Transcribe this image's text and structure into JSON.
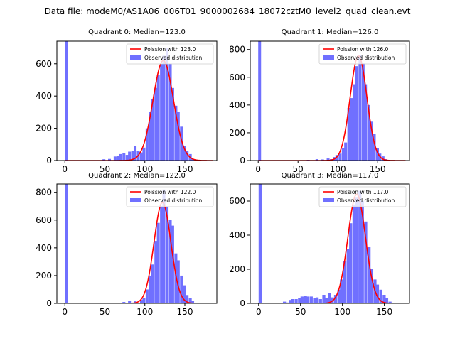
{
  "figure_title": "Data file: modeM0/AS1A06_006T01_9000002684_18072cztM0_level2_quad_clean.evt",
  "colors": {
    "observed": "#7070ff",
    "poisson": "#ff0000",
    "axis": "#000000"
  },
  "chart_data": [
    {
      "type": "histogram",
      "title": "Quadrant 0: Median=123.0",
      "legend": {
        "line": "Poission with 123.0",
        "bar": "Observed distribution",
        "placement": "top-right"
      },
      "xlim": [
        -10,
        190
      ],
      "ylim": [
        0,
        740
      ],
      "xticks": [
        0,
        50,
        100,
        150
      ],
      "yticks": [
        0,
        200,
        400,
        600
      ],
      "bin_width": 3.6,
      "bins": [
        [
          0,
          740
        ],
        [
          47,
          8
        ],
        [
          54,
          10
        ],
        [
          61,
          25
        ],
        [
          65,
          30
        ],
        [
          68,
          40
        ],
        [
          72,
          45
        ],
        [
          76,
          35
        ],
        [
          79,
          55
        ],
        [
          83,
          60
        ],
        [
          86,
          90
        ],
        [
          90,
          60
        ],
        [
          94,
          50
        ],
        [
          97,
          80
        ],
        [
          101,
          200
        ],
        [
          105,
          300
        ],
        [
          108,
          380
        ],
        [
          112,
          450
        ],
        [
          115,
          530
        ],
        [
          119,
          600
        ],
        [
          122,
          650
        ],
        [
          126,
          700
        ],
        [
          130,
          600
        ],
        [
          133,
          450
        ],
        [
          137,
          340
        ],
        [
          140,
          300
        ],
        [
          144,
          210
        ],
        [
          148,
          90
        ],
        [
          151,
          60
        ],
        [
          155,
          40
        ],
        [
          158,
          10
        ],
        [
          162,
          5
        ]
      ],
      "poisson_mean": 123.0,
      "poisson_amp": 620,
      "poisson_sigma": 12.8
    },
    {
      "type": "histogram",
      "title": "Quadrant 1: Median=126.0",
      "legend": {
        "line": "Poission with 126.0",
        "bar": "Observed distribution",
        "placement": "top-right"
      },
      "xlim": [
        -10,
        190
      ],
      "ylim": [
        0,
        860
      ],
      "xticks": [
        0,
        50,
        100,
        150
      ],
      "yticks": [
        0,
        200,
        400,
        600,
        800
      ],
      "bin_width": 3.6,
      "bins": [
        [
          0,
          860
        ],
        [
          61,
          5
        ],
        [
          72,
          10
        ],
        [
          79,
          8
        ],
        [
          86,
          15
        ],
        [
          90,
          10
        ],
        [
          94,
          25
        ],
        [
          97,
          40
        ],
        [
          101,
          50
        ],
        [
          105,
          90
        ],
        [
          108,
          130
        ],
        [
          112,
          380
        ],
        [
          115,
          450
        ],
        [
          119,
          550
        ],
        [
          122,
          680
        ],
        [
          126,
          760
        ],
        [
          130,
          700
        ],
        [
          133,
          550
        ],
        [
          137,
          400
        ],
        [
          140,
          280
        ],
        [
          144,
          190
        ],
        [
          148,
          90
        ],
        [
          151,
          50
        ],
        [
          155,
          30
        ],
        [
          158,
          10
        ],
        [
          162,
          5
        ]
      ],
      "poisson_mean": 126.0,
      "poisson_amp": 755,
      "poisson_sigma": 10.5
    },
    {
      "type": "histogram",
      "title": "Quadrant 2: Median=122.0",
      "legend": {
        "line": "Poission with 122.0",
        "bar": "Observed distribution",
        "placement": "top-right"
      },
      "xlim": [
        -10,
        190
      ],
      "ylim": [
        0,
        860
      ],
      "xticks": [
        0,
        50,
        100,
        150
      ],
      "yticks": [
        0,
        200,
        400,
        600,
        800
      ],
      "bin_width": 3.6,
      "bins": [
        [
          0,
          860
        ],
        [
          72,
          10
        ],
        [
          79,
          20
        ],
        [
          86,
          15
        ],
        [
          94,
          25
        ],
        [
          97,
          40
        ],
        [
          101,
          100
        ],
        [
          105,
          200
        ],
        [
          108,
          280
        ],
        [
          112,
          450
        ],
        [
          115,
          580
        ],
        [
          119,
          700
        ],
        [
          122,
          820
        ],
        [
          126,
          700
        ],
        [
          130,
          600
        ],
        [
          133,
          560
        ],
        [
          137,
          360
        ],
        [
          140,
          310
        ],
        [
          144,
          200
        ],
        [
          148,
          130
        ],
        [
          151,
          60
        ],
        [
          155,
          40
        ],
        [
          158,
          20
        ],
        [
          162,
          5
        ]
      ],
      "poisson_mean": 122.0,
      "poisson_amp": 728,
      "poisson_sigma": 10.5
    },
    {
      "type": "histogram",
      "title": "Quadrant 3: Median=117.0",
      "legend": {
        "line": "Poission with 117.0",
        "bar": "Observed distribution",
        "placement": "top-right"
      },
      "xlim": [
        -10,
        180
      ],
      "ylim": [
        0,
        700
      ],
      "xticks": [
        0,
        50,
        100,
        150
      ],
      "yticks": [
        0,
        200,
        400,
        600
      ],
      "bin_width": 3.6,
      "bins": [
        [
          0,
          700
        ],
        [
          29,
          10
        ],
        [
          32,
          5
        ],
        [
          36,
          20
        ],
        [
          39,
          25
        ],
        [
          43,
          25
        ],
        [
          47,
          30
        ],
        [
          50,
          40
        ],
        [
          54,
          45
        ],
        [
          57,
          40
        ],
        [
          61,
          40
        ],
        [
          65,
          30
        ],
        [
          68,
          35
        ],
        [
          72,
          25
        ],
        [
          76,
          50
        ],
        [
          79,
          30
        ],
        [
          83,
          60
        ],
        [
          86,
          35
        ],
        [
          90,
          50
        ],
        [
          94,
          80
        ],
        [
          97,
          140
        ],
        [
          101,
          250
        ],
        [
          105,
          320
        ],
        [
          108,
          470
        ],
        [
          112,
          580
        ],
        [
          115,
          620
        ],
        [
          119,
          660
        ],
        [
          122,
          600
        ],
        [
          126,
          480
        ],
        [
          130,
          330
        ],
        [
          133,
          200
        ],
        [
          137,
          140
        ],
        [
          140,
          110
        ],
        [
          144,
          80
        ],
        [
          148,
          50
        ],
        [
          151,
          30
        ],
        [
          155,
          10
        ]
      ],
      "poisson_mean": 117.0,
      "poisson_amp": 640,
      "poisson_sigma": 10.5
    }
  ]
}
